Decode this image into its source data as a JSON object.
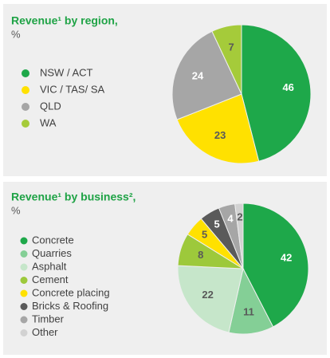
{
  "chart_data": [
    {
      "type": "pie",
      "title": "Revenue¹ by region,",
      "subtitle": "%",
      "categories": [
        "NSW / ACT",
        "VIC / TAS/ SA",
        "QLD",
        "WA"
      ],
      "values": [
        46,
        23,
        24,
        7
      ],
      "colors": [
        "#1ea84a",
        "#ffe100",
        "#a6a6a6",
        "#a5cb3a"
      ],
      "legend": "left"
    },
    {
      "type": "pie",
      "title": "Revenue¹ by business²,",
      "subtitle": "%",
      "categories": [
        "Concrete",
        "Quarries",
        "Asphalt",
        "Cement",
        "Concrete placing",
        "Bricks & Roofing",
        "Timber",
        "Other"
      ],
      "values": [
        42,
        11,
        22,
        8,
        5,
        5,
        4,
        2
      ],
      "colors": [
        "#1ea84a",
        "#84cf96",
        "#c6e6ca",
        "#9dc93b",
        "#ffe100",
        "#5a5a5a",
        "#a6a6a6",
        "#d2d2d2"
      ],
      "legend": "left"
    }
  ]
}
